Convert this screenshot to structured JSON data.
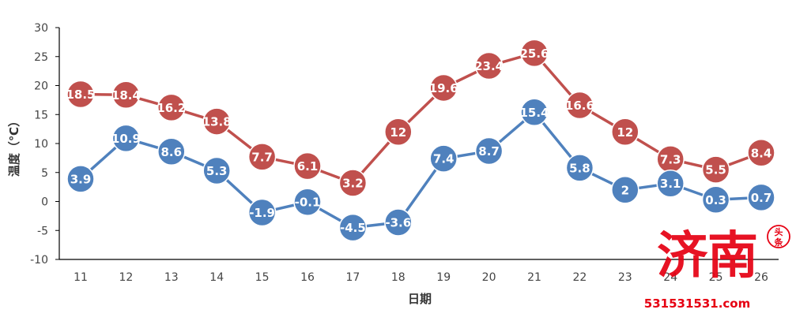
{
  "chart_data": {
    "type": "line",
    "xlabel": "日期",
    "ylabel": "温度（℃）",
    "ylim": [
      -10,
      30
    ],
    "yticks": [
      30,
      25,
      20,
      15,
      10,
      5,
      0,
      -5,
      -10
    ],
    "grid": false,
    "categories": [
      "11",
      "12",
      "13",
      "14",
      "15",
      "16",
      "17",
      "18",
      "19",
      "20",
      "21",
      "22",
      "23",
      "24",
      "25",
      "26"
    ],
    "series": [
      {
        "color": "#c0504d",
        "values": [
          18.5,
          18.4,
          16.2,
          13.8,
          7.7,
          6.1,
          3.2,
          12,
          19.6,
          23.4,
          25.6,
          16.6,
          12,
          7.3,
          5.5,
          8.4
        ],
        "labels": [
          "18.5",
          "18.4",
          "16.2",
          "13.8",
          "7.7",
          "6.1",
          "3.2",
          "12",
          "19.6",
          "23.4",
          "25.6",
          "16.6",
          "12",
          "7.3",
          "5.5",
          "8.4"
        ]
      },
      {
        "color": "#4f81bd",
        "values": [
          3.9,
          10.9,
          8.6,
          5.3,
          -1.9,
          -0.1,
          -4.5,
          -3.6,
          7.4,
          8.7,
          15.4,
          5.8,
          2,
          3.1,
          0.3,
          0.7
        ],
        "labels": [
          "3.9",
          "10.9",
          "8.6",
          "5.3",
          "-1.9",
          "-0.1",
          "-4.5",
          "-3.6",
          "7.4",
          "8.7",
          "15.4",
          "5.8",
          "2",
          "3.1",
          "0.3",
          "0.7"
        ]
      }
    ]
  },
  "watermark": {
    "text": "济南",
    "badge": "头条",
    "url": "531531531.com",
    "color": "#e60012"
  }
}
